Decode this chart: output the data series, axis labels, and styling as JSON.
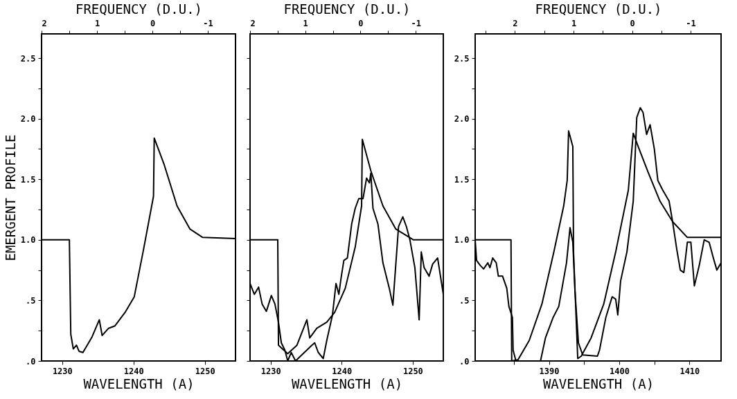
{
  "chart_data": [
    {
      "type": "line",
      "xlabel": "WAVELENGTH (A)",
      "ylabel": "EMERGENT PROFILE",
      "x2label": "FREQUENCY (D.U.)",
      "xlim": [
        1227.1,
        1254.3
      ],
      "xticks": [
        1230,
        1240,
        1250
      ],
      "x2lim": [
        2,
        -1.5
      ],
      "x2ticks": [
        2,
        {
          "value": 1.5,
          "label": null
        },
        1,
        {
          "value": 0.5,
          "label": null
        },
        0,
        {
          "value": -0.5,
          "label": null
        },
        -1
      ],
      "ylim": [
        0,
        2.7
      ],
      "yticks": [
        {
          "value": 0,
          "label": ".0"
        },
        {
          "value": 0.25,
          "label": null
        },
        {
          "value": 0.5,
          "label": ".5"
        },
        {
          "value": 0.75,
          "label": null
        },
        {
          "value": 1,
          "label": "1.0"
        },
        {
          "value": 1.25,
          "label": null
        },
        1.5,
        {
          "value": 1.75,
          "label": null
        },
        {
          "value": 2,
          "label": "2.0"
        },
        {
          "value": 2.25,
          "label": null
        },
        2.5
      ],
      "series": [
        {
          "color": "#000000",
          "x": [
            1227.1,
            1231.0,
            1231.2,
            1231.55,
            1232.0,
            1232.35,
            1232.9,
            1234.15,
            1235.2,
            1235.6,
            1236.5,
            1237.4,
            1238.8,
            1240.1,
            1241.4,
            1242.8,
            1242.9,
            1244.3,
            1246.1,
            1247.9,
            1249.7,
            1254.3
          ],
          "values": [
            1.0,
            1.0,
            0.22,
            0.1,
            0.13,
            0.08,
            0.07,
            0.195,
            0.34,
            0.21,
            0.27,
            0.29,
            0.4,
            0.53,
            0.92,
            1.36,
            1.84,
            1.62,
            1.28,
            1.09,
            1.02,
            1.01
          ]
        }
      ]
    },
    {
      "type": "line",
      "xlabel": "WAVELENGTH (A)",
      "x2label": "FREQUENCY (D.U.)",
      "xlim": [
        1227.1,
        1254.3
      ],
      "xticks": [
        1230,
        1240,
        1250
      ],
      "x2lim": [
        2,
        -1.5
      ],
      "x2ticks": [
        2,
        {
          "value": 1.5,
          "label": null
        },
        1,
        {
          "value": 0.5,
          "label": null
        },
        0,
        {
          "value": -0.5,
          "label": null
        },
        -1
      ],
      "ylim": [
        0,
        2.7
      ],
      "yticks": [
        0,
        0.25,
        0.5,
        0.75,
        1.0,
        1.25,
        1.5,
        1.75,
        2.0,
        2.25,
        2.5
      ],
      "tick_labels": "x",
      "series": [
        {
          "color": "#000000",
          "x": [
            1227.1,
            1231.0,
            1231.1,
            1232.4,
            1233.7,
            1235.1,
            1235.5,
            1236.5,
            1237.9,
            1239.0,
            1240.5,
            1241.9,
            1242.8,
            1242.9,
            1244.1,
            1245.8,
            1247.6,
            1250.1,
            1254.3
          ],
          "values": [
            1.0,
            1.0,
            0.13,
            0.06,
            0.13,
            0.34,
            0.19,
            0.27,
            0.32,
            0.4,
            0.6,
            0.94,
            1.28,
            1.83,
            1.57,
            1.28,
            1.09,
            1.0,
            1.0
          ]
        },
        {
          "color": "#000000",
          "x": [
            1227.1,
            1227.7,
            1228.3,
            1228.8,
            1229.4,
            1230.1,
            1230.6,
            1231.1,
            1231.5,
            1232.0,
            1232.4,
            1232.9,
            1233.5,
            1234.2,
            1235.1,
            1235.8,
            1236.2,
            1236.7,
            1237.4,
            1237.9,
            1238.7,
            1239.2,
            1239.6,
            1239.9,
            1240.3,
            1240.8,
            1241.4,
            1241.9,
            1242.4,
            1243.0,
            1243.5,
            1243.9,
            1244.1,
            1244.4,
            1245.1,
            1245.8,
            1246.7,
            1247.2,
            1248.0,
            1248.6,
            1249.1,
            1249.6,
            1250.3,
            1250.9,
            1251.2,
            1251.6,
            1252.3,
            1252.8,
            1253.5,
            1254.3
          ],
          "values": [
            0.64,
            0.55,
            0.61,
            0.47,
            0.41,
            0.54,
            0.47,
            0.32,
            0.15,
            0.09,
            0.0,
            0.07,
            0.0,
            0.04,
            0.09,
            0.13,
            0.15,
            0.07,
            0.02,
            0.17,
            0.38,
            0.64,
            0.55,
            0.68,
            0.83,
            0.85,
            1.13,
            1.26,
            1.34,
            1.34,
            1.51,
            1.47,
            1.55,
            1.26,
            1.13,
            0.81,
            0.6,
            0.46,
            1.11,
            1.19,
            1.11,
            1.0,
            0.77,
            0.34,
            0.9,
            0.77,
            0.7,
            0.8,
            0.85,
            0.55
          ]
        }
      ]
    },
    {
      "type": "line",
      "xlabel": "WAVELENGTH (A)",
      "x2label": "FREQUENCY (D.U.)",
      "xlim": [
        1379.5,
        1414.5
      ],
      "xticks": [
        {
          "value": 1385,
          "label": null
        },
        1390,
        {
          "value": 1395,
          "label": null
        },
        1400,
        {
          "value": 1405,
          "label": null
        },
        1410
      ],
      "x2lim": [
        2.68,
        -1.52
      ],
      "x2ticks": [
        {
          "value": 2.5,
          "label": null
        },
        2,
        {
          "value": 1.5,
          "label": null
        },
        1,
        {
          "value": 0.5,
          "label": null
        },
        0,
        {
          "value": -0.5,
          "label": null
        },
        -1
      ],
      "ylim": [
        0,
        2.7
      ],
      "yticks": [
        {
          "value": 0,
          "label": ".0"
        },
        {
          "value": 0.25,
          "label": null
        },
        {
          "value": 0.5,
          "label": ".5"
        },
        {
          "value": 0.75,
          "label": null
        },
        {
          "value": 1,
          "label": "1.0"
        },
        {
          "value": 1.25,
          "label": null
        },
        1.5,
        {
          "value": 1.75,
          "label": null
        },
        {
          "value": 2,
          "label": "2.0"
        },
        {
          "value": 2.25,
          "label": null
        },
        2.5
      ],
      "series": [
        {
          "color": "#000000",
          "x": [
            1379.5,
            1384.6,
            1384.7,
            1385.6,
            1387.2,
            1389.0,
            1390.7,
            1392.1,
            1392.6,
            1392.8,
            1393.4,
            1393.5,
            1394.1,
            1394.6,
            1396.0,
            1397.8,
            1399.5,
            1401.3,
            1402.0,
            1402.7,
            1404.1,
            1405.8,
            1407.6,
            1409.7,
            1414.5
          ],
          "values": [
            1.0,
            1.0,
            0.0,
            0.01,
            0.17,
            0.47,
            0.9,
            1.28,
            1.49,
            1.9,
            1.77,
            0.9,
            0.02,
            0.04,
            0.19,
            0.47,
            0.9,
            1.41,
            1.88,
            1.77,
            1.56,
            1.32,
            1.15,
            1.02,
            1.02
          ]
        },
        {
          "color": "#000000",
          "x": [
            1379.5,
            1379.7,
            1380.2,
            1380.7,
            1381.3,
            1381.6,
            1382.0,
            1382.5,
            1382.8,
            1383.4,
            1384.0,
            1384.3,
            1384.8,
            1384.9,
            1385.3,
            1388.8,
            1389.5,
            1390.6,
            1391.4,
            1392.5,
            1393.0,
            1393.4,
            1393.7,
            1394.2,
            1394.8,
            1396.9,
            1397.2,
            1398.1,
            1399.0,
            1399.5,
            1399.8,
            1400.2,
            1401.1,
            1402.0,
            1402.5,
            1403.0,
            1403.4,
            1403.9,
            1404.4,
            1405.0,
            1405.5,
            1406.2,
            1407.1,
            1407.6,
            1408.2,
            1408.7,
            1409.2,
            1409.7,
            1410.2,
            1410.7,
            1411.4,
            1412.1,
            1412.8,
            1413.4,
            1413.9,
            1414.5
          ],
          "values": [
            1.0,
            0.83,
            0.79,
            0.76,
            0.81,
            0.77,
            0.85,
            0.81,
            0.7,
            0.7,
            0.6,
            0.45,
            0.36,
            0.09,
            0.0,
            0.0,
            0.19,
            0.36,
            0.45,
            0.81,
            1.1,
            0.98,
            0.58,
            0.15,
            0.05,
            0.04,
            0.09,
            0.36,
            0.53,
            0.51,
            0.38,
            0.66,
            0.9,
            1.32,
            2.01,
            2.09,
            2.05,
            1.87,
            1.95,
            1.75,
            1.49,
            1.41,
            1.32,
            1.15,
            0.92,
            0.75,
            0.73,
            0.98,
            0.98,
            0.62,
            0.79,
            1.0,
            0.98,
            0.85,
            0.75,
            0.81
          ]
        }
      ]
    }
  ]
}
